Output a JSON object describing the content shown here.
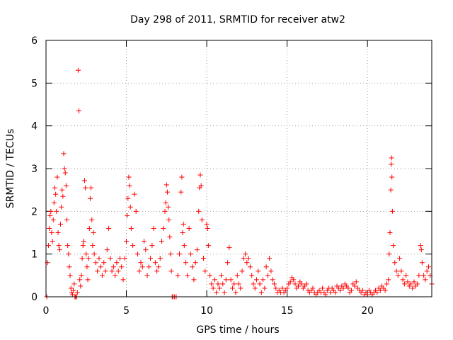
{
  "chart_data": {
    "type": "scatter",
    "title": "Day 298 of 2011, SRMTID for receiver atw2",
    "xlabel": "GPS time / hours",
    "ylabel": "SRMTID / TECUs",
    "xlim": [
      0,
      24
    ],
    "ylim": [
      0,
      6
    ],
    "xticks": [
      0,
      5,
      10,
      15,
      20
    ],
    "yticks": [
      0,
      1,
      2,
      3,
      4,
      5,
      6
    ],
    "grid": true,
    "marker": "plus",
    "color": "#ff0000",
    "series": [
      {
        "name": "SRMTID",
        "points": [
          [
            0.05,
            0.0
          ],
          [
            0.1,
            0.8
          ],
          [
            0.15,
            1.2
          ],
          [
            0.2,
            1.6
          ],
          [
            0.25,
            1.9
          ],
          [
            0.3,
            2.0
          ],
          [
            0.35,
            1.5
          ],
          [
            0.4,
            1.3
          ],
          [
            0.45,
            1.8
          ],
          [
            0.5,
            2.2
          ],
          [
            0.55,
            2.55
          ],
          [
            0.6,
            2.4
          ],
          [
            0.65,
            2.0
          ],
          [
            0.7,
            2.8
          ],
          [
            0.75,
            1.5
          ],
          [
            0.8,
            1.2
          ],
          [
            0.85,
            1.1
          ],
          [
            0.9,
            1.7
          ],
          [
            0.95,
            2.1
          ],
          [
            1.0,
            2.5
          ],
          [
            1.05,
            2.35
          ],
          [
            1.1,
            3.35
          ],
          [
            1.15,
            3.0
          ],
          [
            1.2,
            2.9
          ],
          [
            1.25,
            2.6
          ],
          [
            1.3,
            1.8
          ],
          [
            1.35,
            1.2
          ],
          [
            1.4,
            1.0
          ],
          [
            1.45,
            0.7
          ],
          [
            1.5,
            0.5
          ],
          [
            1.55,
            0.2
          ],
          [
            1.6,
            0.1
          ],
          [
            1.65,
            0.05
          ],
          [
            1.7,
            0.15
          ],
          [
            1.75,
            0.3
          ],
          [
            1.8,
            0.0
          ],
          [
            1.85,
            0.0
          ],
          [
            1.9,
            0.0
          ],
          [
            1.95,
            0.1
          ],
          [
            2.0,
            5.3
          ],
          [
            2.05,
            4.35
          ],
          [
            2.1,
            0.4
          ],
          [
            2.15,
            0.25
          ],
          [
            2.2,
            0.5
          ],
          [
            2.25,
            0.9
          ],
          [
            2.3,
            1.2
          ],
          [
            2.35,
            1.3
          ],
          [
            2.4,
            2.72
          ],
          [
            2.45,
            2.55
          ],
          [
            2.5,
            1.0
          ],
          [
            2.55,
            0.7
          ],
          [
            2.6,
            0.4
          ],
          [
            2.65,
            0.9
          ],
          [
            2.7,
            1.6
          ],
          [
            2.75,
            2.3
          ],
          [
            2.8,
            2.55
          ],
          [
            2.85,
            1.8
          ],
          [
            2.9,
            1.2
          ],
          [
            2.95,
            1.5
          ],
          [
            3.0,
            1.0
          ],
          [
            3.1,
            0.8
          ],
          [
            3.2,
            0.6
          ],
          [
            3.3,
            0.9
          ],
          [
            3.4,
            0.7
          ],
          [
            3.5,
            0.5
          ],
          [
            3.6,
            0.8
          ],
          [
            3.7,
            0.6
          ],
          [
            3.8,
            1.1
          ],
          [
            3.9,
            1.6
          ],
          [
            4.0,
            0.9
          ],
          [
            4.1,
            0.6
          ],
          [
            4.2,
            0.7
          ],
          [
            4.3,
            0.5
          ],
          [
            4.4,
            0.8
          ],
          [
            4.5,
            0.6
          ],
          [
            4.6,
            0.9
          ],
          [
            4.7,
            0.7
          ],
          [
            4.8,
            0.4
          ],
          [
            4.9,
            0.9
          ],
          [
            5.0,
            1.3
          ],
          [
            5.05,
            1.9
          ],
          [
            5.1,
            2.3
          ],
          [
            5.15,
            2.8
          ],
          [
            5.2,
            2.6
          ],
          [
            5.25,
            2.1
          ],
          [
            5.3,
            1.6
          ],
          [
            5.4,
            1.2
          ],
          [
            5.5,
            2.4
          ],
          [
            5.6,
            2.0
          ],
          [
            5.7,
            1.0
          ],
          [
            5.8,
            0.6
          ],
          [
            5.9,
            0.8
          ],
          [
            6.0,
            0.7
          ],
          [
            6.1,
            1.3
          ],
          [
            6.2,
            1.1
          ],
          [
            6.3,
            0.5
          ],
          [
            6.4,
            0.7
          ],
          [
            6.5,
            0.9
          ],
          [
            6.6,
            1.2
          ],
          [
            6.7,
            1.6
          ],
          [
            6.8,
            0.8
          ],
          [
            6.9,
            0.6
          ],
          [
            7.0,
            0.7
          ],
          [
            7.1,
            0.9
          ],
          [
            7.2,
            1.3
          ],
          [
            7.3,
            1.6
          ],
          [
            7.4,
            2.0
          ],
          [
            7.45,
            2.2
          ],
          [
            7.5,
            2.62
          ],
          [
            7.55,
            2.45
          ],
          [
            7.6,
            2.1
          ],
          [
            7.65,
            1.8
          ],
          [
            7.7,
            1.4
          ],
          [
            7.75,
            1.0
          ],
          [
            7.8,
            0.6
          ],
          [
            7.85,
            0.0
          ],
          [
            7.9,
            0.0
          ],
          [
            8.0,
            0.0
          ],
          [
            8.1,
            0.0
          ],
          [
            8.2,
            0.5
          ],
          [
            8.3,
            1.0
          ],
          [
            8.4,
            2.45
          ],
          [
            8.45,
            2.8
          ],
          [
            8.5,
            1.5
          ],
          [
            8.55,
            1.7
          ],
          [
            8.6,
            1.2
          ],
          [
            8.7,
            0.8
          ],
          [
            8.8,
            0.5
          ],
          [
            8.9,
            1.6
          ],
          [
            9.0,
            1.0
          ],
          [
            9.1,
            0.7
          ],
          [
            9.2,
            0.4
          ],
          [
            9.3,
            0.8
          ],
          [
            9.4,
            1.1
          ],
          [
            9.5,
            2.0
          ],
          [
            9.55,
            2.55
          ],
          [
            9.6,
            2.85
          ],
          [
            9.65,
            2.6
          ],
          [
            9.7,
            1.8
          ],
          [
            9.8,
            0.9
          ],
          [
            9.9,
            0.6
          ],
          [
            10.0,
            1.7
          ],
          [
            10.05,
            1.6
          ],
          [
            10.1,
            1.2
          ],
          [
            10.2,
            0.5
          ],
          [
            10.3,
            0.3
          ],
          [
            10.4,
            0.2
          ],
          [
            10.5,
            0.4
          ],
          [
            10.6,
            0.1
          ],
          [
            10.7,
            0.3
          ],
          [
            10.8,
            0.2
          ],
          [
            10.9,
            0.5
          ],
          [
            11.0,
            0.3
          ],
          [
            11.1,
            0.1
          ],
          [
            11.2,
            0.4
          ],
          [
            11.3,
            0.8
          ],
          [
            11.4,
            1.15
          ],
          [
            11.5,
            0.4
          ],
          [
            11.6,
            0.2
          ],
          [
            11.7,
            0.3
          ],
          [
            11.8,
            0.1
          ],
          [
            11.9,
            0.5
          ],
          [
            12.0,
            0.3
          ],
          [
            12.1,
            0.2
          ],
          [
            12.2,
            0.6
          ],
          [
            12.3,
            0.9
          ],
          [
            12.4,
            1.0
          ],
          [
            12.5,
            0.8
          ],
          [
            12.6,
            0.9
          ],
          [
            12.7,
            0.7
          ],
          [
            12.8,
            0.5
          ],
          [
            12.9,
            0.3
          ],
          [
            13.0,
            0.2
          ],
          [
            13.1,
            0.4
          ],
          [
            13.2,
            0.6
          ],
          [
            13.3,
            0.3
          ],
          [
            13.4,
            0.1
          ],
          [
            13.5,
            0.4
          ],
          [
            13.6,
            0.2
          ],
          [
            13.7,
            0.7
          ],
          [
            13.8,
            0.5
          ],
          [
            13.9,
            0.9
          ],
          [
            14.0,
            0.6
          ],
          [
            14.1,
            0.4
          ],
          [
            14.2,
            0.3
          ],
          [
            14.3,
            0.2
          ],
          [
            14.4,
            0.1
          ],
          [
            14.5,
            0.15
          ],
          [
            14.6,
            0.1
          ],
          [
            14.7,
            0.2
          ],
          [
            14.8,
            0.1
          ],
          [
            14.9,
            0.15
          ],
          [
            15.0,
            0.2
          ],
          [
            15.1,
            0.3
          ],
          [
            15.2,
            0.35
          ],
          [
            15.3,
            0.45
          ],
          [
            15.4,
            0.4
          ],
          [
            15.5,
            0.3
          ],
          [
            15.6,
            0.2
          ],
          [
            15.7,
            0.25
          ],
          [
            15.8,
            0.35
          ],
          [
            15.9,
            0.3
          ],
          [
            16.0,
            0.2
          ],
          [
            16.1,
            0.25
          ],
          [
            16.2,
            0.3
          ],
          [
            16.3,
            0.15
          ],
          [
            16.4,
            0.1
          ],
          [
            16.5,
            0.15
          ],
          [
            16.6,
            0.2
          ],
          [
            16.7,
            0.1
          ],
          [
            16.8,
            0.05
          ],
          [
            16.9,
            0.1
          ],
          [
            17.0,
            0.15
          ],
          [
            17.1,
            0.1
          ],
          [
            17.2,
            0.2
          ],
          [
            17.3,
            0.1
          ],
          [
            17.4,
            0.05
          ],
          [
            17.5,
            0.15
          ],
          [
            17.6,
            0.2
          ],
          [
            17.7,
            0.1
          ],
          [
            17.8,
            0.2
          ],
          [
            17.9,
            0.15
          ],
          [
            18.0,
            0.1
          ],
          [
            18.1,
            0.25
          ],
          [
            18.2,
            0.2
          ],
          [
            18.3,
            0.15
          ],
          [
            18.4,
            0.25
          ],
          [
            18.5,
            0.2
          ],
          [
            18.6,
            0.3
          ],
          [
            18.7,
            0.25
          ],
          [
            18.8,
            0.2
          ],
          [
            18.9,
            0.1
          ],
          [
            19.0,
            0.15
          ],
          [
            19.1,
            0.3
          ],
          [
            19.2,
            0.25
          ],
          [
            19.3,
            0.35
          ],
          [
            19.4,
            0.2
          ],
          [
            19.5,
            0.15
          ],
          [
            19.6,
            0.1
          ],
          [
            19.7,
            0.15
          ],
          [
            19.8,
            0.05
          ],
          [
            19.9,
            0.1
          ],
          [
            20.0,
            0.05
          ],
          [
            20.1,
            0.15
          ],
          [
            20.2,
            0.1
          ],
          [
            20.3,
            0.05
          ],
          [
            20.4,
            0.1
          ],
          [
            20.5,
            0.15
          ],
          [
            20.6,
            0.1
          ],
          [
            20.7,
            0.2
          ],
          [
            20.8,
            0.15
          ],
          [
            20.9,
            0.25
          ],
          [
            21.0,
            0.2
          ],
          [
            21.1,
            0.15
          ],
          [
            21.2,
            0.3
          ],
          [
            21.3,
            0.4
          ],
          [
            21.35,
            1.0
          ],
          [
            21.4,
            1.5
          ],
          [
            21.45,
            2.5
          ],
          [
            21.48,
            3.1
          ],
          [
            21.5,
            3.25
          ],
          [
            21.52,
            2.8
          ],
          [
            21.55,
            2.0
          ],
          [
            21.6,
            1.2
          ],
          [
            21.7,
            0.8
          ],
          [
            21.8,
            0.6
          ],
          [
            21.9,
            0.5
          ],
          [
            22.0,
            0.9
          ],
          [
            22.1,
            0.6
          ],
          [
            22.2,
            0.4
          ],
          [
            22.3,
            0.3
          ],
          [
            22.4,
            0.5
          ],
          [
            22.5,
            0.35
          ],
          [
            22.6,
            0.25
          ],
          [
            22.7,
            0.3
          ],
          [
            22.8,
            0.2
          ],
          [
            22.9,
            0.35
          ],
          [
            23.0,
            0.25
          ],
          [
            23.1,
            0.3
          ],
          [
            23.2,
            0.5
          ],
          [
            23.3,
            1.2
          ],
          [
            23.35,
            1.1
          ],
          [
            23.4,
            0.8
          ],
          [
            23.5,
            0.5
          ],
          [
            23.6,
            0.4
          ],
          [
            23.7,
            0.6
          ],
          [
            23.8,
            0.7
          ],
          [
            23.9,
            0.5
          ],
          [
            24.0,
            0.3
          ]
        ]
      }
    ]
  }
}
